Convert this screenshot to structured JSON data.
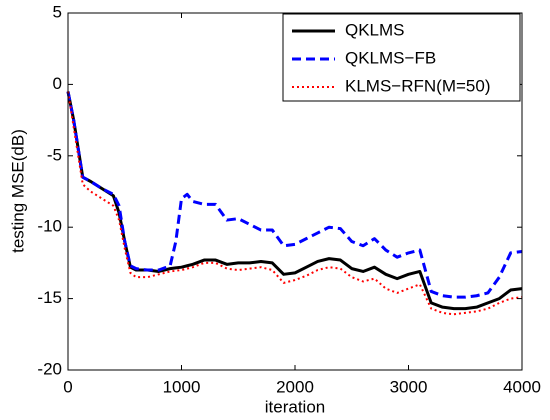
{
  "chart_data": {
    "type": "line",
    "xlabel": "iteration",
    "ylabel": "testing MSE(dB)",
    "x": [
      0,
      50,
      100,
      130,
      200,
      300,
      400,
      450,
      500,
      550,
      600,
      700,
      800,
      900,
      950,
      1000,
      1050,
      1100,
      1200,
      1300,
      1400,
      1500,
      1600,
      1700,
      1800,
      1900,
      2000,
      2100,
      2200,
      2300,
      2400,
      2500,
      2600,
      2700,
      2800,
      2900,
      3000,
      3100,
      3200,
      3300,
      3400,
      3500,
      3600,
      3700,
      3800,
      3900,
      4000
    ],
    "series": [
      {
        "name": "QKLMS",
        "color": "#000000",
        "style": "solid",
        "values": [
          -0.5,
          -2.5,
          -5,
          -6.5,
          -6.8,
          -7.3,
          -7.8,
          -9,
          -11,
          -12.8,
          -13,
          -13,
          -13.1,
          -12.9,
          -12.85,
          -12.8,
          -12.7,
          -12.6,
          -12.3,
          -12.3,
          -12.6,
          -12.5,
          -12.5,
          -12.4,
          -12.5,
          -13.3,
          -13.2,
          -12.8,
          -12.4,
          -12.2,
          -12.3,
          -12.9,
          -13.1,
          -12.8,
          -13.3,
          -13.6,
          -13.3,
          -13.1,
          -15.3,
          -15.6,
          -15.7,
          -15.7,
          -15.6,
          -15.3,
          -15.0,
          -14.4,
          -14.3
        ]
      },
      {
        "name": "QKLMS−FB",
        "color": "#0000ff",
        "style": "dashed",
        "values": [
          -0.5,
          -2.5,
          -5,
          -6.5,
          -6.8,
          -7.3,
          -7.7,
          -8.5,
          -11,
          -12.7,
          -12.9,
          -13,
          -13,
          -12.7,
          -11,
          -8,
          -7.7,
          -8.2,
          -8.4,
          -8.4,
          -9.5,
          -9.4,
          -9.8,
          -10.2,
          -10.2,
          -11.3,
          -11.2,
          -10.8,
          -10.4,
          -10.0,
          -10.1,
          -11.0,
          -11.3,
          -10.8,
          -11.6,
          -12.1,
          -11.8,
          -11.6,
          -14.5,
          -14.8,
          -14.9,
          -14.9,
          -14.8,
          -14.6,
          -13.5,
          -11.8,
          -11.7
        ]
      },
      {
        "name": "KLMS−RFN(M=50)",
        "color": "#ff0000",
        "style": "dotted",
        "values": [
          -0.5,
          -3,
          -5.5,
          -7,
          -7.5,
          -8,
          -8.5,
          -9.5,
          -11.5,
          -13.2,
          -13.5,
          -13.5,
          -13.3,
          -13.1,
          -13.05,
          -13.0,
          -12.9,
          -12.8,
          -12.5,
          -12.5,
          -12.9,
          -13,
          -12.9,
          -12.8,
          -13,
          -13.9,
          -13.7,
          -13.4,
          -13.0,
          -12.8,
          -12.9,
          -13.5,
          -13.8,
          -13.6,
          -14.3,
          -14.6,
          -14.3,
          -14.0,
          -15.7,
          -16.0,
          -16.1,
          -16.0,
          -15.9,
          -15.7,
          -15.3,
          -15.0,
          -14.9
        ]
      }
    ],
    "xlim": [
      0,
      4000
    ],
    "xticks": [
      0,
      1000,
      2000,
      3000,
      4000
    ],
    "ylim": [
      -20,
      5
    ],
    "yticks": [
      -20,
      -15,
      -10,
      -5,
      0,
      5
    ],
    "grid": false,
    "legend": "top-right"
  }
}
